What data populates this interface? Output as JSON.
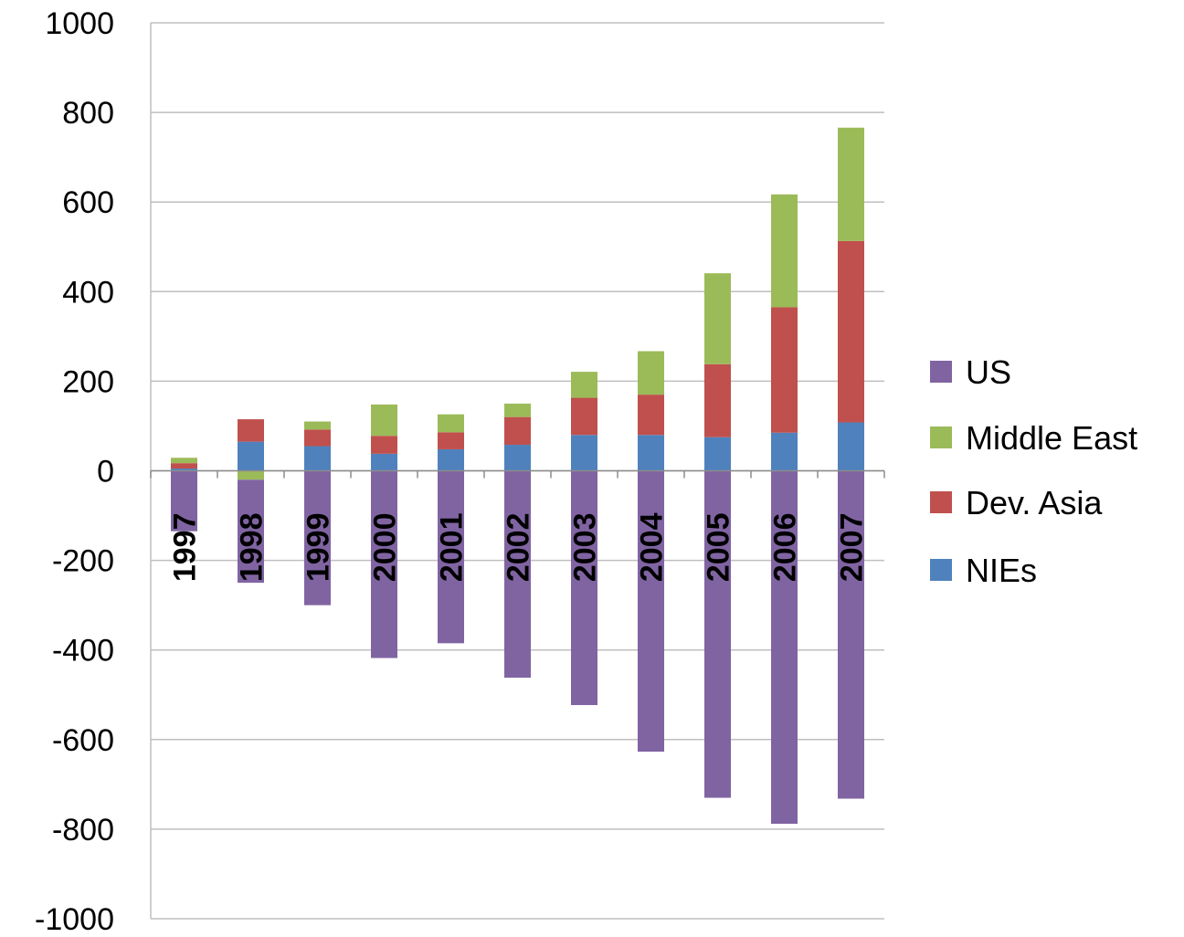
{
  "chart_data": {
    "type": "bar",
    "stacked": true,
    "categories": [
      "1997",
      "1998",
      "1999",
      "2000",
      "2001",
      "2002",
      "2003",
      "2004",
      "2005",
      "2006",
      "2007"
    ],
    "series": [
      {
        "name": "NIEs",
        "color": "#4f81bd",
        "values": [
          5,
          65,
          55,
          38,
          48,
          58,
          80,
          80,
          75,
          85,
          108
        ]
      },
      {
        "name": "Dev. Asia",
        "color": "#c0504d",
        "values": [
          12,
          50,
          37,
          40,
          38,
          62,
          83,
          90,
          163,
          280,
          405
        ]
      },
      {
        "name": "Middle East",
        "color": "#9bbb59",
        "values": [
          12,
          -20,
          18,
          70,
          40,
          30,
          58,
          97,
          203,
          252,
          253
        ]
      },
      {
        "name": "US",
        "color": "#8064a2",
        "values": [
          -135,
          -230,
          -300,
          -418,
          -385,
          -462,
          -523,
          -627,
          -730,
          -788,
          -732
        ]
      }
    ],
    "legend_order": [
      "US",
      "Middle East",
      "Dev. Asia",
      "NIEs"
    ],
    "ylim": [
      -1000,
      1000
    ],
    "yticks": [
      "1000",
      "800",
      "600",
      "400",
      "200",
      "0",
      "-200",
      "-400",
      "-600",
      "-800",
      "-1000"
    ],
    "grid": true,
    "legend_position": "right",
    "title": "",
    "xlabel": "",
    "ylabel": ""
  }
}
